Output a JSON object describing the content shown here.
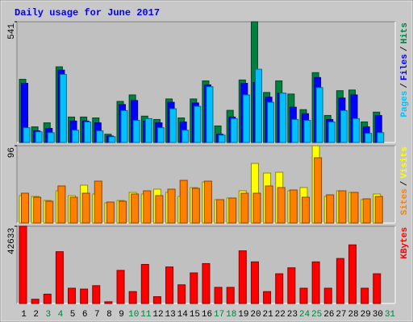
{
  "chart_data": [
    {
      "type": "bar",
      "title": "Daily usage for June 2017",
      "ylim": [
        0,
        541
      ],
      "yticks": [
        541
      ],
      "legend_separator": "/",
      "legend": "right",
      "series": [
        {
          "name": "Hits",
          "color": "#008040",
          "values": [
            283,
            70,
            88,
            339,
            114,
            114,
            110,
            37,
            184,
            213,
            118,
            103,
            195,
            110,
            195,
            276,
            74,
            144,
            280,
            541,
            224,
            276,
            217,
            147,
            313,
            121,
            232,
            235,
            92,
            136,
            null
          ]
        },
        {
          "name": "Files",
          "color": "#0000ff",
          "values": [
            265,
            52,
            63,
            324,
            96,
            96,
            88,
            29,
            170,
            188,
            96,
            88,
            180,
            92,
            177,
            258,
            37,
            114,
            265,
            269,
            203,
            221,
            158,
            129,
            291,
            103,
            199,
            213,
            70,
            121,
            null
          ]
        },
        {
          "name": "Pages",
          "color": "#00c0ff",
          "values": [
            66,
            48,
            44,
            305,
            55,
            92,
            52,
            26,
            143,
            99,
            107,
            66,
            151,
            55,
            162,
            250,
            33,
            107,
            213,
            328,
            180,
            221,
            103,
            99,
            246,
            92,
            143,
            107,
            41,
            44,
            null
          ]
        }
      ]
    },
    {
      "type": "bar",
      "ylim": [
        0,
        96
      ],
      "yticks": [
        96
      ],
      "legend_separator": "/",
      "legend": "right",
      "series": [
        {
          "name": "Visits",
          "color": "#ffff00",
          "values": [
            34,
            33,
            28,
            40,
            34,
            47,
            36,
            25,
            28,
            38,
            36,
            42,
            38,
            33,
            44,
            51,
            29,
            31,
            40,
            74,
            62,
            63,
            40,
            44,
            96,
            33,
            40,
            38,
            29,
            36,
            null
          ]
        },
        {
          "name": "Sites",
          "color": "#ff8000",
          "values": [
            37,
            32,
            27,
            46,
            32,
            37,
            52,
            26,
            27,
            36,
            40,
            34,
            42,
            53,
            43,
            52,
            29,
            31,
            37,
            37,
            46,
            44,
            41,
            32,
            81,
            35,
            40,
            38,
            30,
            33,
            null
          ]
        }
      ]
    },
    {
      "type": "bar",
      "ylim": [
        0,
        42633
      ],
      "yticks": [
        42633
      ],
      "legend": "right",
      "categories": [
        "1",
        "2",
        "3",
        "4",
        "5",
        "6",
        "7",
        "8",
        "9",
        "10",
        "11",
        "12",
        "13",
        "14",
        "15",
        "16",
        "17",
        "18",
        "19",
        "20",
        "21",
        "22",
        "23",
        "24",
        "25",
        "26",
        "27",
        "28",
        "29",
        "30",
        "31"
      ],
      "category_colors": [
        "#000000",
        "#000000",
        "#008040",
        "#008040",
        "#000000",
        "#000000",
        "#000000",
        "#000000",
        "#000000",
        "#008040",
        "#008040",
        "#000000",
        "#000000",
        "#000000",
        "#000000",
        "#000000",
        "#008040",
        "#008040",
        "#000000",
        "#000000",
        "#000000",
        "#000000",
        "#000000",
        "#008040",
        "#008040",
        "#000000",
        "#000000",
        "#000000",
        "#000000",
        "#000000",
        "#008040"
      ],
      "series": [
        {
          "name": "KBytes",
          "color": "#ff0000",
          "values": [
            42633,
            2340,
            5150,
            28580,
            8430,
            7960,
            9840,
            940,
            18270,
            6560,
            21550,
            3750,
            20150,
            10300,
            16870,
            22020,
            8900,
            8900,
            29050,
            22960,
            6560,
            16400,
            19680,
            8430,
            22960,
            8430,
            24830,
            32330,
            8430,
            16400,
            null
          ]
        }
      ]
    }
  ]
}
